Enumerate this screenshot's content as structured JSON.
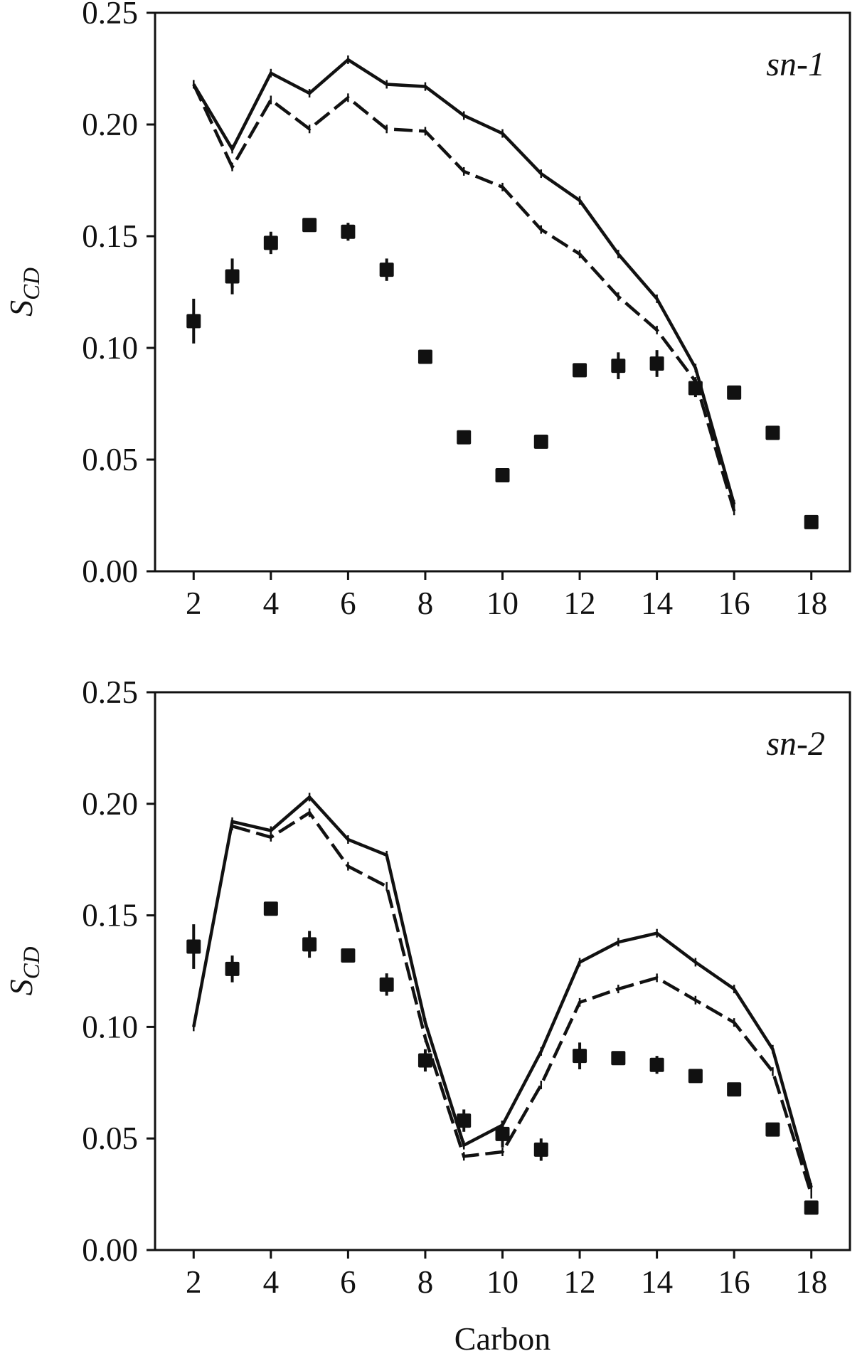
{
  "chart_data": [
    {
      "type": "line",
      "panel_label": "sn-1",
      "ylabel_main": "S",
      "ylabel_sub": "CD",
      "xlabel": "",
      "xlim": [
        1.0,
        19.0
      ],
      "ylim": [
        0.0,
        0.25
      ],
      "xticks": [
        2,
        4,
        6,
        8,
        10,
        12,
        14,
        16,
        18
      ],
      "yticks": [
        "0.00",
        "0.05",
        "0.10",
        "0.15",
        "0.20",
        "0.25"
      ],
      "series": [
        {
          "style": "solid",
          "x": [
            2,
            3,
            4,
            5,
            6,
            7,
            8,
            9,
            10,
            11,
            12,
            13,
            14,
            15,
            16
          ],
          "values": [
            0.218,
            0.189,
            0.223,
            0.214,
            0.229,
            0.218,
            0.217,
            0.204,
            0.196,
            0.178,
            0.166,
            0.142,
            0.122,
            0.091,
            0.03
          ]
        },
        {
          "style": "dashed",
          "x": [
            2,
            3,
            4,
            5,
            6,
            7,
            8,
            9,
            10,
            11,
            12,
            13,
            14,
            15,
            16
          ],
          "values": [
            0.218,
            0.181,
            0.211,
            0.198,
            0.212,
            0.198,
            0.197,
            0.179,
            0.172,
            0.153,
            0.142,
            0.123,
            0.108,
            0.085,
            0.027
          ]
        },
        {
          "style": "markers",
          "x": [
            2,
            3,
            4,
            5,
            6,
            7,
            8,
            9,
            10,
            11,
            12,
            13,
            14,
            15,
            16,
            17,
            18
          ],
          "values": [
            0.112,
            0.132,
            0.147,
            0.155,
            0.152,
            0.135,
            0.096,
            0.06,
            0.043,
            0.058,
            0.09,
            0.092,
            0.093,
            0.082,
            0.08,
            0.062,
            0.022
          ],
          "errors": [
            0.01,
            0.008,
            0.005,
            0.003,
            0.004,
            0.005,
            0.002,
            0.002,
            0.002,
            0.002,
            0.002,
            0.006,
            0.006,
            0.004,
            0.003,
            0.002,
            0.002
          ]
        }
      ]
    },
    {
      "type": "line",
      "panel_label": "sn-2",
      "ylabel_main": "S",
      "ylabel_sub": "CD",
      "xlabel": "Carbon",
      "xlim": [
        1.0,
        19.0
      ],
      "ylim": [
        0.0,
        0.25
      ],
      "xticks": [
        2,
        4,
        6,
        8,
        10,
        12,
        14,
        16,
        18
      ],
      "yticks": [
        "0.00",
        "0.05",
        "0.10",
        "0.15",
        "0.20",
        "0.25"
      ],
      "series": [
        {
          "style": "solid",
          "x": [
            2,
            3,
            4,
            5,
            6,
            7,
            8,
            9,
            10,
            11,
            12,
            13,
            14,
            15,
            16,
            17,
            18
          ],
          "values": [
            0.1,
            0.192,
            0.188,
            0.203,
            0.184,
            0.177,
            0.102,
            0.047,
            0.056,
            0.089,
            0.129,
            0.138,
            0.142,
            0.129,
            0.117,
            0.09,
            0.028
          ]
        },
        {
          "style": "dashed",
          "x": [
            3,
            4,
            5,
            6,
            7,
            8,
            9,
            10,
            11,
            12,
            13,
            14,
            15,
            16,
            17,
            18
          ],
          "values": [
            0.19,
            0.185,
            0.196,
            0.172,
            0.163,
            0.095,
            0.042,
            0.044,
            0.074,
            0.111,
            0.117,
            0.122,
            0.112,
            0.102,
            0.08,
            0.025
          ]
        },
        {
          "style": "markers",
          "x": [
            2,
            3,
            4,
            5,
            6,
            7,
            8,
            9,
            10,
            11,
            12,
            13,
            14,
            15,
            16,
            17,
            18
          ],
          "values": [
            0.136,
            0.126,
            0.153,
            0.137,
            0.132,
            0.119,
            0.085,
            0.058,
            0.052,
            0.045,
            0.087,
            0.086,
            0.083,
            0.078,
            0.072,
            0.054,
            0.019
          ],
          "errors": [
            0.01,
            0.006,
            0.003,
            0.006,
            0.002,
            0.005,
            0.005,
            0.005,
            0.006,
            0.005,
            0.006,
            0.003,
            0.004,
            0.002,
            0.002,
            0.002,
            0.002
          ]
        }
      ]
    }
  ]
}
